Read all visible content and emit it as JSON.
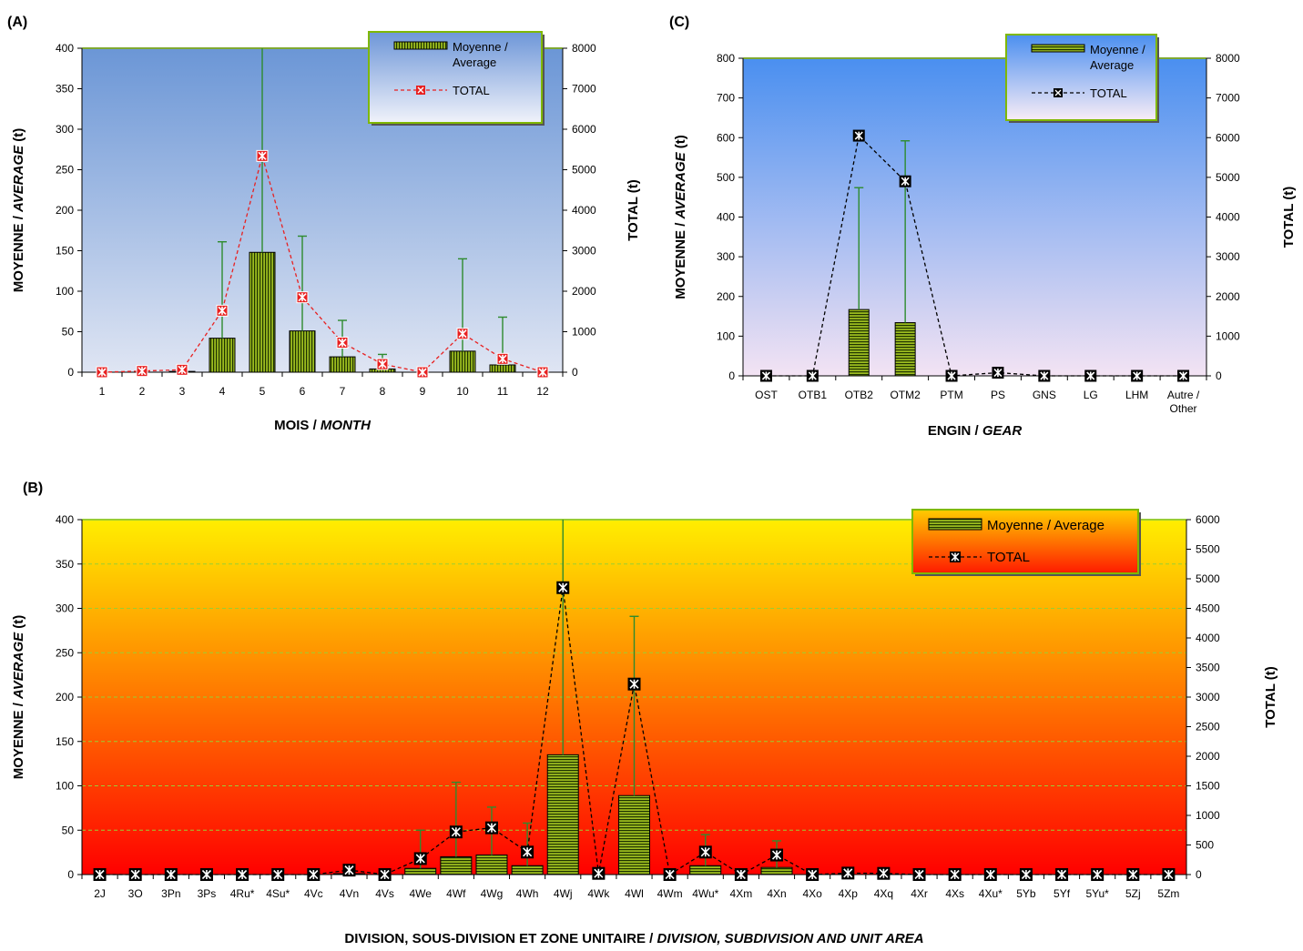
{
  "chart_data": [
    {
      "id": "A",
      "panel_label": "(A)",
      "type": "bar+line",
      "xlabel_main": "MOIS / ",
      "xlabel_italic": "MONTH",
      "ylabel_main": "MOYENNE  /  ",
      "ylabel_italic": "AVERAGE",
      "ylabel_unit": " (t)",
      "y2label": "TOTAL (t)",
      "categories": [
        "1",
        "2",
        "3",
        "4",
        "5",
        "6",
        "7",
        "8",
        "9",
        "10",
        "11",
        "12"
      ],
      "ylim": [
        0,
        400
      ],
      "y2lim": [
        0,
        8000
      ],
      "yticks": [
        "0",
        "50",
        "100",
        "150",
        "200",
        "250",
        "300",
        "350",
        "400"
      ],
      "y2ticks": [
        "0",
        "1000",
        "2000",
        "3000",
        "4000",
        "5000",
        "6000",
        "7000",
        "8000"
      ],
      "series": [
        {
          "name": "Moyenne / Average",
          "kind": "bar",
          "axis": "left",
          "values": [
            0,
            0,
            1,
            42,
            148,
            51,
            19,
            4,
            0,
            26,
            9,
            0
          ]
        },
        {
          "name": "TOTAL",
          "kind": "line",
          "axis": "right",
          "values": [
            0,
            30,
            60,
            1520,
            5340,
            1850,
            730,
            200,
            0,
            950,
            330,
            0
          ]
        }
      ],
      "error_bars_upper": [
        0,
        0,
        0,
        161,
        400,
        168,
        64,
        22,
        0,
        140,
        68,
        0
      ],
      "legend_position": "top-right",
      "legend_line1": "Moyenne /",
      "legend_line2": "Average",
      "legend_total": "TOTAL",
      "colors": {
        "bar_fill": "#9bbb1f",
        "bar_stripe": "#1f3300",
        "line": "#e82020",
        "marker_fill": "#e82020",
        "error": "#2e8b2e",
        "bg_top": "#6b96d6",
        "bg_bottom": "#dfe5f3",
        "legend_border": "#7fb800"
      }
    },
    {
      "id": "C",
      "panel_label": "(C)",
      "type": "bar+line",
      "xlabel_main": "ENGIN / ",
      "xlabel_italic": "GEAR",
      "ylabel_main": "MOYENNE  /  ",
      "ylabel_italic": "AVERAGE",
      "ylabel_unit": " (t)",
      "y2label": "TOTAL (t)",
      "categories": [
        "OST",
        "OTB1",
        "OTB2",
        "OTM2",
        "PTM",
        "PS",
        "GNS",
        "LG",
        "LHM",
        "Autre /|Other"
      ],
      "ylim": [
        0,
        800
      ],
      "y2lim": [
        0,
        8000
      ],
      "yticks": [
        "0",
        "100",
        "200",
        "300",
        "400",
        "500",
        "600",
        "700",
        "800"
      ],
      "y2ticks": [
        "0",
        "1000",
        "2000",
        "3000",
        "4000",
        "5000",
        "6000",
        "7000",
        "8000"
      ],
      "series": [
        {
          "name": "Moyenne / Average",
          "kind": "bar",
          "axis": "left",
          "values": [
            0,
            0,
            167,
            134,
            0,
            0,
            0,
            0,
            0,
            0
          ]
        },
        {
          "name": "TOTAL",
          "kind": "line",
          "axis": "right",
          "values": [
            0,
            0,
            6050,
            4900,
            0,
            80,
            0,
            0,
            0,
            0
          ]
        }
      ],
      "error_bars_upper": [
        0,
        0,
        474,
        592,
        0,
        0,
        0,
        0,
        0,
        0
      ],
      "legend_position": "top-right",
      "legend_line1": "Moyenne /",
      "legend_line2": "Average",
      "legend_total": "TOTAL",
      "colors": {
        "bar_fill": "#9bbb1f",
        "bar_stripe": "#1f3300",
        "line": "#000000",
        "marker_fill": "#ffffff",
        "error": "#2e8b2e",
        "bg_top": "#4a8ff0",
        "bg_bottom": "#f3e3f3",
        "legend_border": "#7fb800"
      }
    },
    {
      "id": "B",
      "panel_label": "(B)",
      "type": "bar+line",
      "xlabel_main": "DIVISION, SOUS-DIVISION  ET  ZONE UNITAIRE  /  ",
      "xlabel_italic": "DIVISION, SUBDIVISION  AND  UNIT  AREA",
      "ylabel_main": "MOYENNE  /  ",
      "ylabel_italic": "AVERAGE",
      "ylabel_unit": " (t)",
      "y2label": "TOTAL (t)",
      "categories": [
        "2J",
        "3O",
        "3Pn",
        "3Ps",
        "4Ru*",
        "4Su*",
        "4Vc",
        "4Vn",
        "4Vs",
        "4We",
        "4Wf",
        "4Wg",
        "4Wh",
        "4Wj",
        "4Wk",
        "4Wl",
        "4Wm",
        "4Wu*",
        "4Xm",
        "4Xn",
        "4Xo",
        "4Xp",
        "4Xq",
        "4Xr",
        "4Xs",
        "4Xu*",
        "5Yb",
        "5Yf",
        "5Yu*",
        "5Zj",
        "5Zm"
      ],
      "ylim": [
        0,
        400
      ],
      "y2lim": [
        0,
        6000
      ],
      "yticks": [
        "0",
        "50",
        "100",
        "150",
        "200",
        "250",
        "300",
        "350",
        "400"
      ],
      "y2ticks": [
        "0",
        "500",
        "1000",
        "1500",
        "2000",
        "2500",
        "3000",
        "3500",
        "4000",
        "4500",
        "5000",
        "5500",
        "6000"
      ],
      "series": [
        {
          "name": "Moyenne / Average",
          "kind": "bar",
          "axis": "left",
          "values": [
            0,
            0,
            0,
            0,
            0,
            0,
            0,
            1,
            0,
            7,
            20,
            22,
            10,
            135,
            0,
            89,
            0,
            10,
            0,
            8,
            0,
            0,
            0,
            0,
            0,
            0,
            0,
            0,
            0,
            0,
            0
          ]
        },
        {
          "name": "TOTAL",
          "kind": "line",
          "axis": "right",
          "values": [
            0,
            0,
            0,
            0,
            0,
            0,
            0,
            75,
            0,
            270,
            720,
            790,
            380,
            4850,
            20,
            3220,
            0,
            380,
            0,
            330,
            0,
            25,
            20,
            0,
            0,
            0,
            0,
            0,
            0,
            0,
            0
          ]
        }
      ],
      "error_bars_upper": [
        0,
        0,
        0,
        0,
        0,
        0,
        0,
        0,
        0,
        50,
        104,
        76,
        58,
        400,
        0,
        291,
        0,
        45,
        0,
        38,
        0,
        0,
        0,
        0,
        0,
        0,
        0,
        0,
        0,
        0,
        0
      ],
      "grid": true,
      "legend_position": "top-right",
      "legend_line1": "Moyenne / Average",
      "legend_total": "TOTAL",
      "colors": {
        "bar_fill": "#9bbb1f",
        "bar_stripe": "#1f3300",
        "line": "#000000",
        "marker_fill": "#ffffff",
        "error": "#2e8b2e",
        "grid": "#9acd32",
        "bg_top": "#ffee00",
        "bg_bottom": "#ff0000",
        "legend_border": "#7fb800"
      }
    }
  ]
}
